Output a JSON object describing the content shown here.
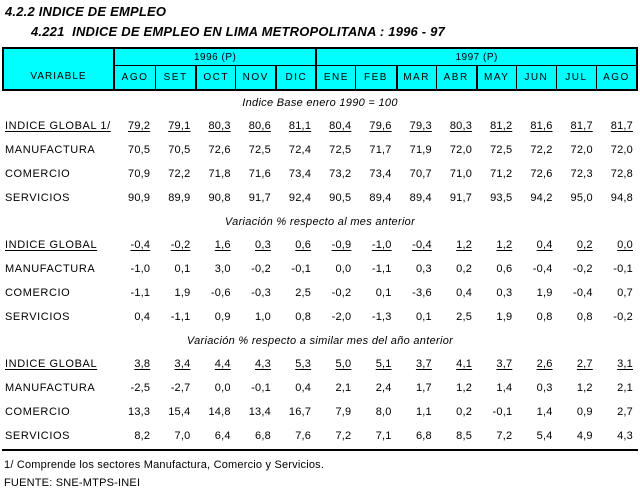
{
  "titles": {
    "line1": "4.2.2 INDICE DE EMPLEO",
    "line2": "4.221  INDICE DE EMPLEO EN LIMA METROPOLITANA : 1996 - 97"
  },
  "colors": {
    "header_bg": "#00ffff",
    "border": "#000000",
    "text": "#000000",
    "page_bg": "#ffffff"
  },
  "table": {
    "variable_header": "VARIABLE",
    "year_groups": [
      {
        "label": "1996 (P)",
        "span": 5
      },
      {
        "label": "1997 (P)",
        "span": 8
      }
    ],
    "months": [
      "AGO",
      "SET",
      "OCT",
      "NOV",
      "DIC",
      "ENE",
      "FEB",
      "MAR",
      "ABR",
      "MAY",
      "JUN",
      "JUL",
      "AGO"
    ],
    "sections": [
      {
        "heading": "Indice Base enero 1990 = 100",
        "rows": [
          {
            "label": "INDICE GLOBAL 1/",
            "underline": true,
            "values": [
              "79,2",
              "79,1",
              "80,3",
              "80,6",
              "81,1",
              "80,4",
              "79,6",
              "79,3",
              "80,3",
              "81,2",
              "81,6",
              "81,7",
              "81,7"
            ]
          },
          {
            "label": "MANUFACTURA",
            "underline": false,
            "values": [
              "70,5",
              "70,5",
              "72,6",
              "72,5",
              "72,4",
              "72,5",
              "71,7",
              "71,9",
              "72,0",
              "72,5",
              "72,2",
              "72,0",
              "72,0"
            ]
          },
          {
            "label": "COMERCIO",
            "underline": false,
            "values": [
              "70,9",
              "72,2",
              "71,8",
              "71,6",
              "73,4",
              "73,2",
              "73,4",
              "70,7",
              "71,0",
              "71,2",
              "72,6",
              "72,3",
              "72,8"
            ]
          },
          {
            "label": "SERVICIOS",
            "underline": false,
            "values": [
              "90,9",
              "89,9",
              "90,8",
              "91,7",
              "92,4",
              "90,5",
              "89,4",
              "89,4",
              "91,7",
              "93,5",
              "94,2",
              "95,0",
              "94,8"
            ]
          }
        ]
      },
      {
        "heading": "Variación % respecto al mes anterior",
        "rows": [
          {
            "label": "INDICE GLOBAL",
            "underline": true,
            "values": [
              "-0,4",
              "-0,2",
              "1,6",
              "0,3",
              "0,6",
              "-0,9",
              "-1,0",
              "-0,4",
              "1,2",
              "1,2",
              "0,4",
              "0,2",
              "0,0"
            ]
          },
          {
            "label": "MANUFACTURA",
            "underline": false,
            "values": [
              "-1,0",
              "0,1",
              "3,0",
              "-0,2",
              "-0,1",
              "0,0",
              "-1,1",
              "0,3",
              "0,2",
              "0,6",
              "-0,4",
              "-0,2",
              "-0,1"
            ]
          },
          {
            "label": "COMERCIO",
            "underline": false,
            "values": [
              "-1,1",
              "1,9",
              "-0,6",
              "-0,3",
              "2,5",
              "-0,2",
              "0,1",
              "-3,6",
              "0,4",
              "0,3",
              "1,9",
              "-0,4",
              "0,7"
            ]
          },
          {
            "label": "SERVICIOS",
            "underline": false,
            "values": [
              "0,4",
              "-1,1",
              "0,9",
              "1,0",
              "0,8",
              "-2,0",
              "-1,3",
              "0,1",
              "2,5",
              "1,9",
              "0,8",
              "0,8",
              "-0,2"
            ]
          }
        ]
      },
      {
        "heading": "Variación % respecto a similar mes del año anterior",
        "rows": [
          {
            "label": "INDICE GLOBAL",
            "underline": true,
            "values": [
              "3,8",
              "3,4",
              "4,4",
              "4,3",
              "5,3",
              "5,0",
              "5,1",
              "3,7",
              "4,1",
              "3,7",
              "2,6",
              "2,7",
              "3,1"
            ]
          },
          {
            "label": "MANUFACTURA",
            "underline": false,
            "values": [
              "-2,5",
              "-2,7",
              "0,0",
              "-0,1",
              "0,4",
              "2,1",
              "2,4",
              "1,7",
              "1,2",
              "1,4",
              "0,3",
              "1,2",
              "2,1"
            ]
          },
          {
            "label": "COMERCIO",
            "underline": false,
            "values": [
              "13,3",
              "15,4",
              "14,8",
              "13,4",
              "16,7",
              "7,9",
              "8,0",
              "1,1",
              "0,2",
              "-0,1",
              "1,4",
              "0,9",
              "2,7"
            ]
          },
          {
            "label": "SERVICIOS",
            "underline": false,
            "values": [
              "8,2",
              "7,0",
              "6,4",
              "6,8",
              "7,6",
              "7,2",
              "7,1",
              "6,8",
              "8,5",
              "7,2",
              "5,4",
              "4,9",
              "4,3"
            ]
          }
        ]
      }
    ]
  },
  "footer": {
    "note": "1/ Comprende los sectores Manufactura, Comercio y Servicios.",
    "source": "FUENTE: SNE-MTPS-INEI"
  }
}
